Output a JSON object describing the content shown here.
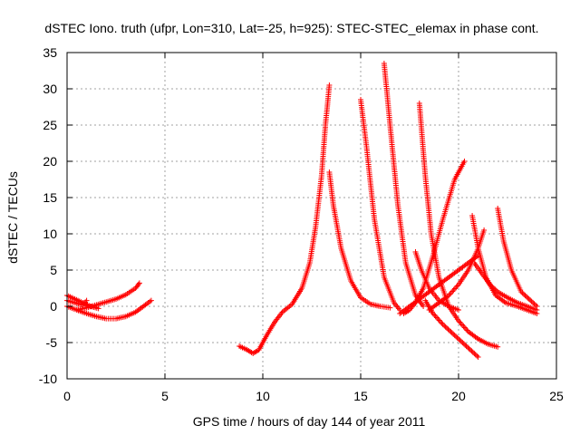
{
  "chart_data": {
    "type": "scatter",
    "title": "dSTEC Iono. truth (ufpr, Lon=310, Lat=-25, h=925): STEC-STEC_elemax in phase cont.",
    "xlabel": "GPS time / hours of day 144 of year 2011",
    "ylabel": "dSTEC  / TECUs",
    "xlim": [
      0,
      25
    ],
    "ylim": [
      -10,
      35
    ],
    "xticks": [
      0,
      5,
      10,
      15,
      20,
      25
    ],
    "yticks": [
      -10,
      -5,
      0,
      5,
      10,
      15,
      20,
      25,
      30,
      35
    ],
    "grid": true,
    "marker": "+",
    "color": "#ff0000",
    "series": [
      {
        "x": [
          0,
          0.4,
          0.8,
          1.2,
          1.6
        ],
        "y": [
          1.5,
          1.0,
          0.5,
          0.0,
          -0.3
        ]
      },
      {
        "x": [
          0,
          0.5,
          0.8,
          1.0
        ],
        "y": [
          0.8,
          0.4,
          0.2,
          0.8
        ]
      },
      {
        "x": [
          0.5,
          1.0,
          1.5,
          2.0,
          2.5,
          3.0,
          3.5,
          3.7
        ],
        "y": [
          -0.5,
          -0.2,
          0.2,
          0.6,
          1.0,
          1.6,
          2.5,
          3.2
        ]
      },
      {
        "x": [
          0.0,
          0.5,
          1.0,
          1.5,
          2.0,
          2.5,
          3.0,
          3.5,
          4.0,
          4.3
        ],
        "y": [
          0.0,
          -0.5,
          -1.0,
          -1.4,
          -1.7,
          -1.7,
          -1.4,
          -0.8,
          0.2,
          0.8
        ]
      },
      {
        "x": [
          8.8,
          9.2,
          9.5,
          9.8,
          10.2,
          10.6,
          11.0,
          11.5,
          12.0,
          12.4,
          12.7,
          13.0,
          13.2,
          13.4
        ],
        "y": [
          -5.5,
          -6.0,
          -6.5,
          -6.0,
          -4.0,
          -2.2,
          -0.8,
          0.3,
          2.5,
          6.0,
          11.0,
          18.0,
          25.0,
          30.5
        ]
      },
      {
        "x": [
          13.4,
          13.6,
          14.0,
          14.5,
          15.0,
          15.5,
          16.0,
          16.5
        ],
        "y": [
          18.5,
          14.0,
          8.0,
          3.5,
          1.2,
          0.3,
          0.0,
          -0.2
        ]
      },
      {
        "x": [
          15.0,
          15.3,
          15.7,
          16.2,
          16.7,
          17.0
        ],
        "y": [
          28.5,
          22.0,
          12.0,
          4.0,
          0.5,
          -0.5
        ]
      },
      {
        "x": [
          16.2,
          16.5,
          16.9,
          17.3,
          17.8,
          18.2
        ],
        "y": [
          33.5,
          25.0,
          14.0,
          6.0,
          1.5,
          0.0
        ]
      },
      {
        "x": [
          17.2,
          17.5,
          17.8,
          18.2,
          18.7,
          19.2,
          19.8,
          20.3
        ],
        "y": [
          -1.0,
          -0.5,
          0.5,
          2.5,
          7.0,
          12.0,
          17.5,
          20.0
        ]
      },
      {
        "x": [
          17.8,
          18.1,
          18.5,
          19.0,
          19.5,
          20.0
        ],
        "y": [
          7.5,
          5.0,
          2.5,
          0.8,
          0.0,
          -0.5
        ]
      },
      {
        "x": [
          18.0,
          18.3,
          18.6,
          19.0,
          19.5,
          20.0,
          20.5,
          21.0,
          21.5,
          22.0
        ],
        "y": [
          28.0,
          18.0,
          10.0,
          4.0,
          0.0,
          -2.0,
          -3.5,
          -4.5,
          -5.2,
          -5.6
        ]
      },
      {
        "x": [
          18.3,
          18.7,
          19.2,
          19.8,
          20.4,
          21.0
        ],
        "y": [
          0.8,
          -1.0,
          -2.5,
          -4.0,
          -5.5,
          -7.0
        ]
      },
      {
        "x": [
          18.5,
          19.0,
          19.5,
          20.0,
          20.5,
          21.0,
          21.3
        ],
        "y": [
          -0.5,
          0.5,
          1.5,
          3.0,
          5.0,
          8.0,
          10.5
        ]
      },
      {
        "x": [
          20.7,
          21.0,
          21.4,
          21.9,
          22.4,
          23.0,
          23.5,
          24.0
        ],
        "y": [
          12.5,
          8.0,
          4.0,
          1.5,
          0.5,
          0.0,
          -0.5,
          -1.0
        ]
      },
      {
        "x": [
          22.0,
          22.3,
          22.7,
          23.2,
          23.8,
          24.0
        ],
        "y": [
          13.5,
          9.0,
          5.0,
          2.0,
          0.5,
          0.0
        ]
      },
      {
        "x": [
          20.8,
          21.2,
          21.6,
          22.0,
          22.5,
          23.0,
          23.5,
          24.0
        ],
        "y": [
          6.0,
          4.5,
          3.0,
          2.0,
          1.2,
          0.5,
          0.0,
          -0.5
        ]
      },
      {
        "x": [
          17.0,
          17.5,
          18.0,
          18.5,
          19.0,
          19.5,
          20.0,
          20.5,
          21.0
        ],
        "y": [
          -1.0,
          0.0,
          1.0,
          2.0,
          3.0,
          4.0,
          5.0,
          6.0,
          7.0
        ]
      }
    ]
  }
}
